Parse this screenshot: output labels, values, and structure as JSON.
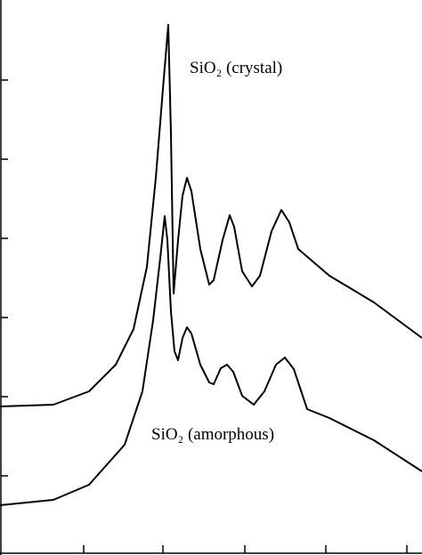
{
  "chart_data": {
    "type": "line",
    "annotations": [
      "SiO₂ (crystal)",
      "SiO₂ (amorphous)"
    ],
    "series": [
      {
        "color": "#000000",
        "x": [
          0,
          60,
          100,
          130,
          150,
          165,
          175,
          183,
          189,
          192,
          195,
          200,
          205,
          210,
          215,
          225,
          235,
          240,
          250,
          258,
          263,
          272,
          283,
          292,
          305,
          316,
          325,
          335,
          370,
          420,
          474
        ],
        "values": [
          167,
          169,
          184,
          214,
          254,
          324,
          424,
          524,
          596,
          474,
          294,
          354,
          404,
          424,
          409,
          344,
          304,
          309,
          354,
          382,
          369,
          319,
          302,
          314,
          364,
          388,
          374,
          344,
          314,
          284,
          244
        ]
      },
      {
        "color": "#000000",
        "x": [
          0,
          60,
          100,
          140,
          160,
          172,
          180,
          185,
          188,
          192,
          196,
          200,
          205,
          210,
          215,
          225,
          235,
          240,
          248,
          255,
          262,
          272,
          285,
          297,
          310,
          320,
          330,
          345,
          370,
          420,
          474
        ],
        "values": [
          56,
          62,
          79,
          124,
          184,
          264,
          334,
          381,
          354,
          274,
          229,
          219,
          244,
          256,
          249,
          214,
          194,
          192,
          210,
          214,
          206,
          179,
          169,
          184,
          214,
          222,
          209,
          164,
          154,
          129,
          94
        ]
      }
    ],
    "xlim": [
      0,
      474
    ],
    "xticks": [
      94,
      183,
      275,
      366,
      457
    ],
    "ylim": [
      0,
      624
    ],
    "yticks": [
      89,
      178,
      267,
      356,
      445,
      534
    ]
  }
}
